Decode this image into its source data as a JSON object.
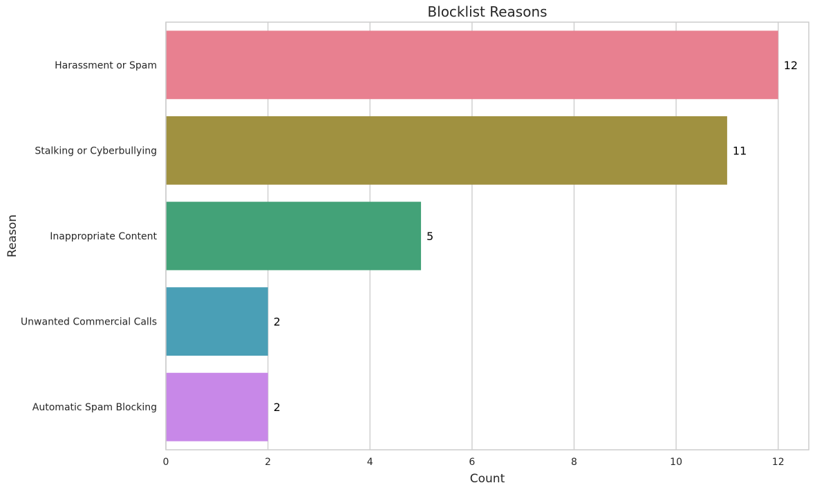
{
  "chart_data": {
    "type": "bar",
    "orientation": "horizontal",
    "title": "Blocklist Reasons",
    "xlabel": "Count",
    "ylabel": "Reason",
    "categories": [
      "Harassment or Spam",
      "Stalking or Cyberbullying",
      "Inappropriate Content",
      "Unwanted Commercial Calls",
      "Automatic Spam Blocking"
    ],
    "values": [
      12,
      11,
      5,
      2,
      2
    ],
    "colors": [
      "#e88090",
      "#a09140",
      "#43a278",
      "#4a9fb6",
      "#c888e8"
    ],
    "xlim": [
      0,
      12.6
    ],
    "xticks": [
      0,
      2,
      4,
      6,
      8,
      10,
      12
    ],
    "grid": true,
    "legend": "none"
  }
}
